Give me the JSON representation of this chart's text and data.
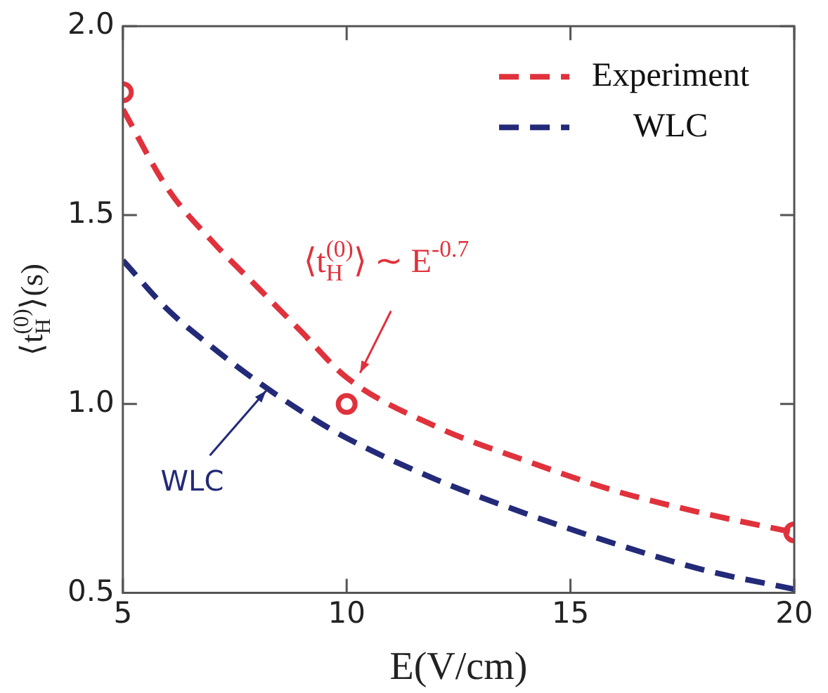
{
  "chart_data": {
    "type": "line",
    "xlabel": "E(V/cm)",
    "ylabel": "⟨t$_{H}$$^{(0)}$⟩(s)",
    "xlim": [
      5,
      20
    ],
    "xticks": [
      5,
      10,
      15,
      20
    ],
    "ylim": [
      0.5,
      2.0
    ],
    "yticks": [
      {
        "value": 0.5,
        "label": "0.5"
      },
      {
        "value": 1,
        "label": "1.0"
      },
      {
        "value": 1.5,
        "label": "1.5"
      },
      {
        "value": 2,
        "label": "2.0"
      }
    ],
    "grid": false,
    "legend": "top right",
    "series": [
      {
        "name": "Experiment",
        "type": "line",
        "color": "#e0323c",
        "line_style": "dashed",
        "marker": "none",
        "x": [
          5,
          6,
          7,
          8,
          9,
          10,
          12,
          14,
          16,
          18,
          20
        ],
        "values": [
          1.78,
          1.57,
          1.43,
          1.31,
          1.19,
          1.07,
          0.94,
          0.85,
          0.77,
          0.71,
          0.66
        ]
      },
      {
        "name": "WLC",
        "type": "line",
        "color": "#232a78",
        "line_style": "dashed",
        "marker": "none",
        "x": [
          5,
          6,
          7,
          8,
          9,
          10,
          12,
          14,
          16,
          18,
          20
        ],
        "values": [
          1.38,
          1.25,
          1.15,
          1.06,
          0.98,
          0.91,
          0.8,
          0.71,
          0.63,
          0.56,
          0.51
        ]
      },
      {
        "type": "scatter",
        "color": "#e0323c",
        "marker": "circle",
        "x": [
          5,
          10,
          20
        ],
        "values": [
          1.825,
          1.0,
          0.66
        ]
      }
    ],
    "annotations": [
      {
        "text": "⟨t$_{H}$$^{(0)}$⟩ ∼ E$^{-0.7}$",
        "x": 10.3,
        "y": 1.06
      },
      {
        "text": "WLC",
        "x": 8.2,
        "y": 1.05
      }
    ]
  }
}
